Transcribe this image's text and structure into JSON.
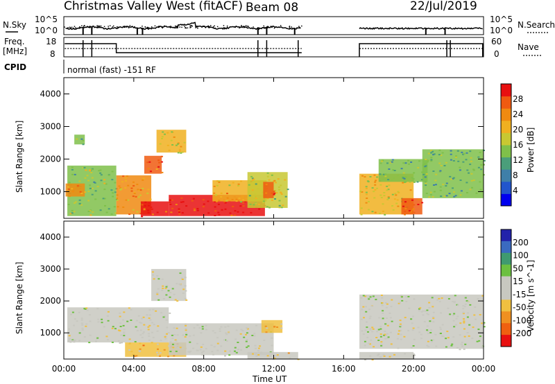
{
  "header": {
    "station": "Christmas Valley West (fitACF)",
    "beam": "Beam 08",
    "date": "22/Jul/2019"
  },
  "noise_panel": {
    "left_label": "N.Sky",
    "right_label": "N.Search",
    "ticks": [
      "10^5",
      "10^0"
    ],
    "right_ticks": [
      "10^5",
      "10^0"
    ]
  },
  "freq_panel": {
    "left_label_1": "Freq.",
    "left_label_2": "[MHz]",
    "left_ticks": [
      "18",
      "8"
    ],
    "right_label": "Nave",
    "right_ticks": [
      "60",
      "0"
    ]
  },
  "cpid": {
    "label": "CPID",
    "value": "normal (fast) -151 RF"
  },
  "axes": {
    "ylabel": "Slant Range [km]",
    "yticks": [
      "1000",
      "2000",
      "3000",
      "4000"
    ],
    "xlabel": "Time UT",
    "xticks": [
      "00:00",
      "04:00",
      "08:00",
      "12:00",
      "16:00",
      "20:00",
      "00:00"
    ]
  },
  "power_colorbar": {
    "label": "Power [dB]",
    "ticks": [
      "4",
      "8",
      "12",
      "16",
      "20",
      "24",
      "28"
    ],
    "colors": [
      "#0000ee",
      "#2255cc",
      "#3f7fa8",
      "#4a9e7a",
      "#7fc04a",
      "#c8c832",
      "#f0b020",
      "#f08a10",
      "#f05a10",
      "#e81010"
    ]
  },
  "velocity_colorbar": {
    "label": "Velocity [m s^-1]",
    "ticks": [
      "200",
      "100",
      "50",
      "15",
      "-15",
      "-50",
      "-100",
      "-200"
    ],
    "colors": [
      "#2222aa",
      "#3a6ac0",
      "#3f9a70",
      "#6cc040",
      "#c8c8c0",
      "#c8c8c0",
      "#f0c040",
      "#f09020",
      "#f06010",
      "#e81010"
    ]
  },
  "chart_data": [
    {
      "type": "heatmap",
      "title": "Power",
      "xlabel": "Time UT",
      "ylabel": "Slant Range [km]",
      "xlim": [
        0,
        24
      ],
      "ylim": [
        180,
        4500
      ],
      "colorbar_label": "Power [dB]",
      "colorbar_range": [
        0,
        30
      ],
      "data_gaps_hours": [
        [
          13.6,
          16.9
        ]
      ],
      "regions": [
        {
          "t": [
            0.2,
            3.0
          ],
          "r": [
            250,
            1800
          ],
          "value": 14
        },
        {
          "t": [
            0.1,
            1.2
          ],
          "r": [
            850,
            1250
          ],
          "value": 22
        },
        {
          "t": [
            0.6,
            1.2
          ],
          "r": [
            2450,
            2750
          ],
          "value": 12
        },
        {
          "t": [
            3.0,
            5.0
          ],
          "r": [
            300,
            1500
          ],
          "value": 22
        },
        {
          "t": [
            4.4,
            6.0
          ],
          "r": [
            250,
            700
          ],
          "value": 28
        },
        {
          "t": [
            4.6,
            5.6
          ],
          "r": [
            1550,
            2100
          ],
          "value": 26
        },
        {
          "t": [
            5.3,
            7.0
          ],
          "r": [
            2200,
            2900
          ],
          "value": 18
        },
        {
          "t": [
            6.0,
            11.5
          ],
          "r": [
            250,
            900
          ],
          "value": 28
        },
        {
          "t": [
            8.5,
            11.6
          ],
          "r": [
            700,
            1350
          ],
          "value": 20
        },
        {
          "t": [
            10.5,
            12.8
          ],
          "r": [
            500,
            1600
          ],
          "value": 16
        },
        {
          "t": [
            11.4,
            12.0
          ],
          "r": [
            800,
            1300
          ],
          "value": 26
        },
        {
          "t": [
            16.9,
            20.0
          ],
          "r": [
            300,
            1550
          ],
          "value": 18
        },
        {
          "t": [
            18.0,
            20.8
          ],
          "r": [
            1300,
            2000
          ],
          "value": 12
        },
        {
          "t": [
            19.3,
            20.5
          ],
          "r": [
            300,
            800
          ],
          "value": 26
        },
        {
          "t": [
            20.5,
            24.0
          ],
          "r": [
            800,
            2300
          ],
          "value": 12
        }
      ]
    },
    {
      "type": "heatmap",
      "title": "Velocity",
      "xlabel": "Time UT",
      "ylabel": "Slant Range [km]",
      "xlim": [
        0,
        24
      ],
      "ylim": [
        180,
        4500
      ],
      "colorbar_label": "Velocity [m s^-1]",
      "colorbar_range": [
        -200,
        200
      ],
      "data_gaps_hours": [
        [
          13.6,
          16.9
        ]
      ],
      "regions": [
        {
          "t": [
            0.2,
            6.0
          ],
          "r": [
            700,
            1800
          ],
          "value": 0
        },
        {
          "t": [
            5.0,
            7.0
          ],
          "r": [
            2000,
            3000
          ],
          "value": 0
        },
        {
          "t": [
            3.5,
            7.0
          ],
          "r": [
            250,
            700
          ],
          "value": -60
        },
        {
          "t": [
            6.0,
            12.0
          ],
          "r": [
            300,
            1300
          ],
          "value": 0
        },
        {
          "t": [
            11.3,
            12.5
          ],
          "r": [
            1000,
            1400
          ],
          "value": -60
        },
        {
          "t": [
            10.5,
            13.4
          ],
          "r": [
            180,
            400
          ],
          "value": -30
        },
        {
          "t": [
            16.9,
            24.0
          ],
          "r": [
            500,
            2200
          ],
          "value": 0
        },
        {
          "t": [
            16.9,
            20.0
          ],
          "r": [
            180,
            400
          ],
          "value": -30
        }
      ]
    }
  ]
}
